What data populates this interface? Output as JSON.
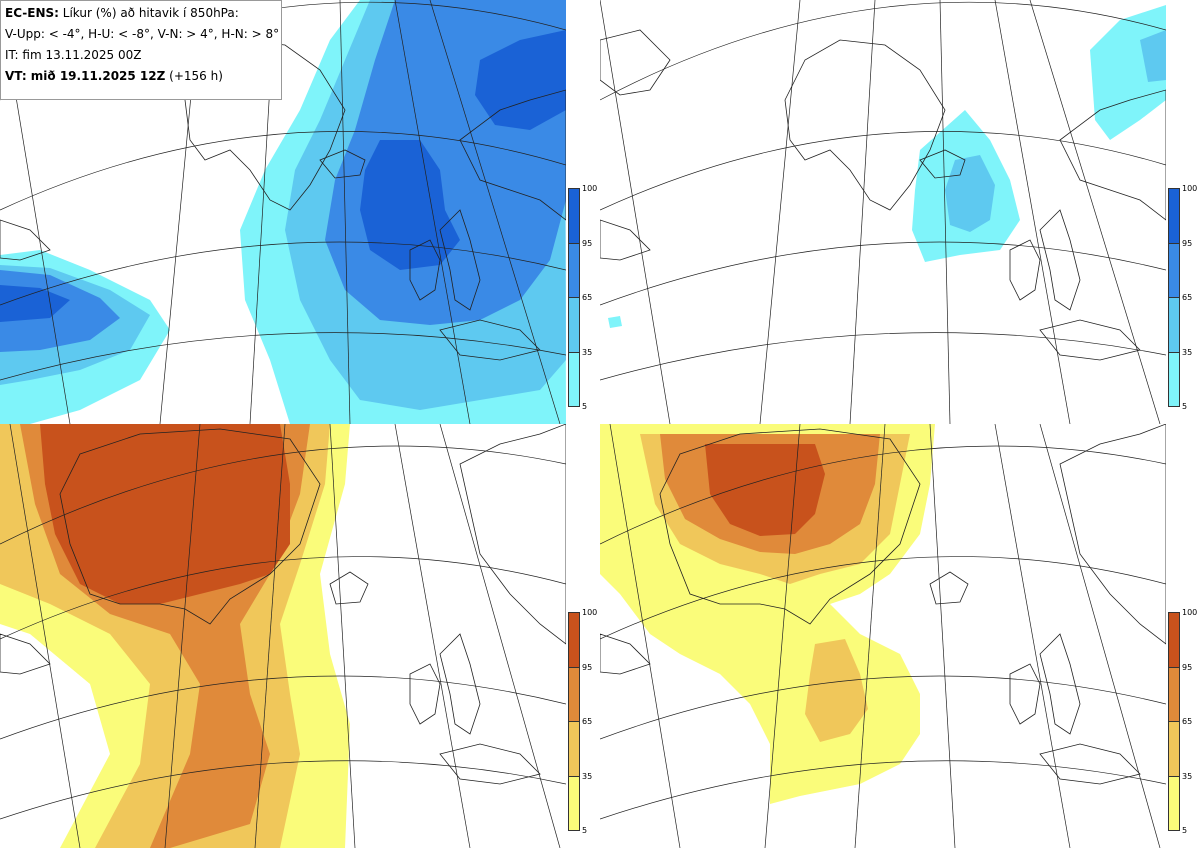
{
  "legend": {
    "line1_bold": "EC-ENS:",
    "line1_rest": "Líkur (%) að hitavik í 850hPa:",
    "line2": "V-Upp: < -4°, H-U: < -8°, V-N: > 4°, H-N: > 8°",
    "line3": "IT: fim 13.11.2025 00Z",
    "line4_bold": "VT: mið 19.11.2025 12Z",
    "line4_rest": "(+156 h)"
  },
  "colorbar": {
    "ticks": [
      "100",
      "95",
      "65",
      "35",
      "5"
    ],
    "blue_colors": [
      "#1a62d6",
      "#3a8ae6",
      "#5ec9f0",
      "#7ff4fa"
    ],
    "orange_colors": [
      "#c8521c",
      "#e08a3a",
      "#f0c75a",
      "#fafc7a"
    ]
  },
  "panels": [
    {
      "name": "V-Upp",
      "palette": "blue"
    },
    {
      "name": "H-U",
      "palette": "blue"
    },
    {
      "name": "V-N",
      "palette": "orange"
    },
    {
      "name": "H-N",
      "palette": "orange"
    }
  ]
}
